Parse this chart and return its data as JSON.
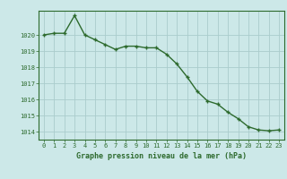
{
  "x": [
    0,
    1,
    2,
    3,
    4,
    5,
    6,
    7,
    8,
    9,
    10,
    11,
    12,
    13,
    14,
    15,
    16,
    17,
    18,
    19,
    20,
    21,
    22,
    23
  ],
  "y": [
    1020.0,
    1020.1,
    1020.1,
    1021.2,
    1020.0,
    1019.7,
    1019.4,
    1019.1,
    1019.3,
    1019.3,
    1019.2,
    1019.2,
    1018.8,
    1018.2,
    1017.4,
    1016.5,
    1015.9,
    1015.7,
    1015.2,
    1014.8,
    1014.3,
    1014.1,
    1014.05,
    1014.1
  ],
  "line_color": "#2d6a2d",
  "marker_color": "#2d6a2d",
  "bg_color": "#cce8e8",
  "grid_color": "#aacccc",
  "xlabel": "Graphe pression niveau de la mer (hPa)",
  "xlabel_color": "#2d6a2d",
  "tick_color": "#2d6a2d",
  "ylim": [
    1013.5,
    1021.5
  ],
  "yticks": [
    1014,
    1015,
    1016,
    1017,
    1018,
    1019,
    1020
  ],
  "xticks": [
    0,
    1,
    2,
    3,
    4,
    5,
    6,
    7,
    8,
    9,
    10,
    11,
    12,
    13,
    14,
    15,
    16,
    17,
    18,
    19,
    20,
    21,
    22,
    23
  ],
  "linewidth": 1.0,
  "markersize": 2.8
}
